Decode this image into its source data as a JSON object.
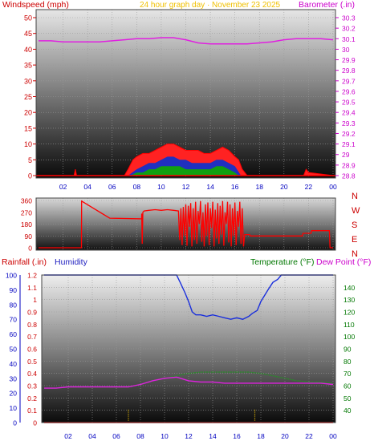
{
  "header": {
    "windspeed_label": "Windspeed (mph)",
    "center_title": "24 hour graph day · November 23 2025",
    "barometer_label": "Barometer (.in)",
    "rainfall_label": "Rainfall (.in)",
    "humidity_label": "Humidity",
    "temperature_label": "Temperature (°F)",
    "dewpoint_label": "Dew Point (°F)"
  },
  "colors": {
    "wind": "#ff0000",
    "gust": "#ff2222",
    "wind_mid": "#2030c0",
    "wind_low": "#10a010",
    "barometer": "#e020e0",
    "humidity": "#1a2fdc",
    "temperature": "#2a8a2a",
    "dewpoint": "#e020e0",
    "rainfall": "#ff0000",
    "label_red": "#cc0000",
    "label_blue": "#2020c0",
    "label_green": "#007700",
    "label_magenta": "#cc00cc",
    "label_yellow": "#f0c000",
    "axis_blue": "#0000c0"
  },
  "chart_data": [
    {
      "type": "area",
      "name": "wind_barometer",
      "x_ticks": [
        "02",
        "04",
        "06",
        "08",
        "10",
        "12",
        "14",
        "16",
        "18",
        "20",
        "22",
        "00"
      ],
      "left_axis": {
        "title": "Windspeed (mph)",
        "ylim": [
          0,
          50
        ],
        "ticks": [
          "0",
          "5",
          "10",
          "15",
          "20",
          "25",
          "30",
          "35",
          "40",
          "45",
          "50"
        ]
      },
      "right_axis": {
        "title": "Barometer (.in)",
        "ylim": [
          28.8,
          30.3
        ],
        "ticks": [
          "28.8",
          "28.9",
          "29",
          "29.1",
          "29.2",
          "29.3",
          "29.4",
          "29.5",
          "29.6",
          "29.7",
          "29.8",
          "29.9",
          "30",
          "30.1",
          "30.2",
          "30.3"
        ]
      },
      "series": [
        {
          "name": "Barometer (.in)",
          "axis": "right",
          "x": [
            0,
            1,
            2,
            3,
            4,
            5,
            6,
            7,
            8,
            9,
            10,
            11,
            12,
            13,
            14,
            15,
            16,
            17,
            18,
            19,
            20,
            21,
            22,
            23,
            24
          ],
          "values": [
            30.08,
            30.08,
            30.07,
            30.07,
            30.07,
            30.07,
            30.08,
            30.09,
            30.1,
            30.1,
            30.11,
            30.11,
            30.09,
            30.06,
            30.05,
            30.05,
            30.05,
            30.05,
            30.06,
            30.07,
            30.09,
            30.1,
            30.1,
            30.1,
            30.09
          ]
        },
        {
          "name": "gust",
          "axis": "left",
          "x": [
            0,
            2.9,
            3,
            3.1,
            4,
            7,
            7.3,
            7.7,
            8,
            8.5,
            9,
            9.5,
            10,
            10.5,
            11,
            11.5,
            12,
            12.5,
            13,
            13.5,
            14,
            14.5,
            15,
            15.5,
            16,
            16.3,
            16.6,
            17,
            21.6,
            21.8,
            22,
            24
          ],
          "values": [
            0,
            0,
            2,
            0,
            0,
            0,
            2,
            5,
            6,
            7,
            7,
            8,
            9,
            10,
            10,
            9,
            8,
            8,
            8,
            7,
            7,
            8,
            9,
            8,
            6,
            5,
            2,
            0,
            0,
            2,
            1,
            0
          ]
        },
        {
          "name": "mid",
          "axis": "left",
          "x": [
            0,
            7.3,
            8,
            8.5,
            9,
            9.5,
            10,
            10.5,
            11,
            11.5,
            12,
            12.5,
            13,
            13.5,
            14,
            14.5,
            15,
            15.5,
            16,
            16.5,
            24
          ],
          "values": [
            0,
            0,
            2,
            3,
            4,
            4,
            5,
            6,
            6,
            5,
            5,
            4,
            4,
            4,
            4,
            5,
            5,
            4,
            3,
            0,
            0
          ]
        },
        {
          "name": "low",
          "axis": "left",
          "x": [
            0,
            7.5,
            8,
            8.5,
            9,
            9.5,
            10,
            10.5,
            11,
            11.5,
            12,
            12.5,
            13,
            13.5,
            14,
            14.5,
            15,
            15.5,
            16,
            16.3,
            24
          ],
          "values": [
            0,
            0,
            1,
            1,
            2,
            2,
            3,
            3,
            3,
            3,
            2,
            2,
            2,
            2,
            2,
            3,
            3,
            2,
            1,
            0,
            0
          ]
        }
      ]
    },
    {
      "type": "line",
      "name": "wind_direction",
      "left_ticks": [
        "0",
        "90",
        "180",
        "270",
        "360"
      ],
      "right_ticks": [
        "N",
        "W",
        "S",
        "E",
        "N"
      ],
      "ylim": [
        0,
        360
      ],
      "series": [
        {
          "name": "direction",
          "x": [
            0,
            3.5,
            3.51,
            5.8,
            5.81,
            8.4,
            8.41,
            8.45,
            8.5,
            8.6,
            9,
            9.5,
            10,
            10.5,
            11,
            11.4,
            11.5,
            11.6,
            11.7,
            11.8,
            11.9,
            12,
            12.1,
            12.2,
            12.3,
            12.4,
            12.5,
            12.6,
            12.7,
            12.8,
            12.9,
            13,
            13.1,
            13.2,
            13.3,
            13.4,
            13.5,
            13.6,
            13.7,
            13.8,
            13.9,
            14,
            14.1,
            14.2,
            14.3,
            14.4,
            14.5,
            14.6,
            14.7,
            14.8,
            14.9,
            15,
            15.1,
            15.2,
            15.3,
            15.4,
            15.5,
            15.6,
            15.7,
            15.8,
            15.9,
            16,
            16.1,
            16.2,
            16.3,
            16.4,
            16.5,
            16.6,
            16.7,
            16.8,
            17.2,
            17.25,
            21.5,
            21.55,
            22.2,
            22.25,
            23.7,
            23.75,
            24
          ],
          "values": [
            0,
            0,
            355,
            225,
            225,
            220,
            260,
            30,
            270,
            280,
            285,
            290,
            285,
            290,
            285,
            280,
            60,
            300,
            20,
            310,
            90,
            330,
            15,
            320,
            160,
            340,
            10,
            300,
            60,
            350,
            30,
            280,
            180,
            355,
            45,
            270,
            10,
            330,
            90,
            345,
            20,
            300,
            150,
            350,
            10,
            290,
            70,
            340,
            30,
            320,
            100,
            355,
            15,
            270,
            180,
            350,
            40,
            330,
            10,
            300,
            90,
            345,
            20,
            280,
            160,
            350,
            30,
            300,
            10,
            100,
            100,
            90,
            90,
            110,
            110,
            130,
            130,
            0,
            0
          ]
        }
      ]
    },
    {
      "type": "line",
      "name": "rain_humidity_temperature",
      "x_ticks": [
        "02",
        "04",
        "06",
        "08",
        "10",
        "12",
        "14",
        "16",
        "18",
        "20",
        "22",
        "00"
      ],
      "left_ticks": [
        "0",
        "10",
        "20",
        "30",
        "40",
        "50",
        "60",
        "70",
        "80",
        "90",
        "100"
      ],
      "rain_axis": {
        "title": "Rainfall (.in)",
        "ylim": [
          0,
          1.2
        ],
        "ticks": [
          "0",
          "0.1",
          "0.2",
          "0.3",
          "0.4",
          "0.5",
          "0.6",
          "0.7",
          "0.8",
          "0.9",
          "1",
          "1.1",
          "1.2"
        ]
      },
      "temp_axis": {
        "title": "Temperature (°F)",
        "ylim": [
          30,
          150
        ],
        "ticks": [
          "40",
          "50",
          "60",
          "70",
          "80",
          "90",
          "100",
          "110",
          "120",
          "130",
          "140"
        ]
      },
      "series": [
        {
          "name": "Humidity",
          "axis": "left",
          "x": [
            0,
            11,
            11.3,
            11.7,
            12,
            12.3,
            12.6,
            13,
            13.5,
            14,
            14.5,
            15,
            15.5,
            16,
            16.5,
            17,
            17.3,
            17.7,
            18,
            18.3,
            18.6,
            19,
            19.4,
            19.7,
            20,
            24
          ],
          "values": [
            100,
            100,
            95,
            88,
            82,
            75,
            73,
            73,
            72,
            73,
            72,
            71,
            70,
            71,
            70,
            72,
            74,
            76,
            82,
            86,
            90,
            95,
            97,
            100,
            100,
            100
          ]
        },
        {
          "name": "Temperature (°F)",
          "axis": "temp",
          "x": [
            0,
            1,
            2,
            3,
            4,
            5,
            6,
            7,
            8,
            9,
            10,
            11,
            12,
            13,
            14,
            15,
            16,
            17,
            18,
            19,
            20,
            21,
            22,
            23,
            24
          ],
          "values": [
            58,
            58,
            59,
            59,
            59,
            59,
            59,
            59,
            61,
            64,
            66,
            68,
            70,
            71,
            71,
            71,
            71,
            71,
            70,
            68,
            66,
            64,
            63,
            63,
            62
          ]
        },
        {
          "name": "Dew Point (°F)",
          "axis": "temp",
          "x": [
            0,
            1,
            2,
            3,
            4,
            5,
            6,
            7,
            8,
            9,
            10,
            11,
            12,
            13,
            14,
            15,
            16,
            17,
            18,
            19,
            20,
            21,
            22,
            23,
            24
          ],
          "values": [
            58,
            58,
            59,
            59,
            59,
            59,
            59,
            59,
            61,
            64,
            66,
            67,
            64,
            63,
            63,
            62,
            62,
            62,
            62,
            62,
            62,
            62,
            62,
            62,
            61
          ]
        },
        {
          "name": "Rainfall (.in)",
          "axis": "rain",
          "x": [
            0,
            24
          ],
          "values": [
            0,
            0
          ]
        }
      ]
    }
  ]
}
